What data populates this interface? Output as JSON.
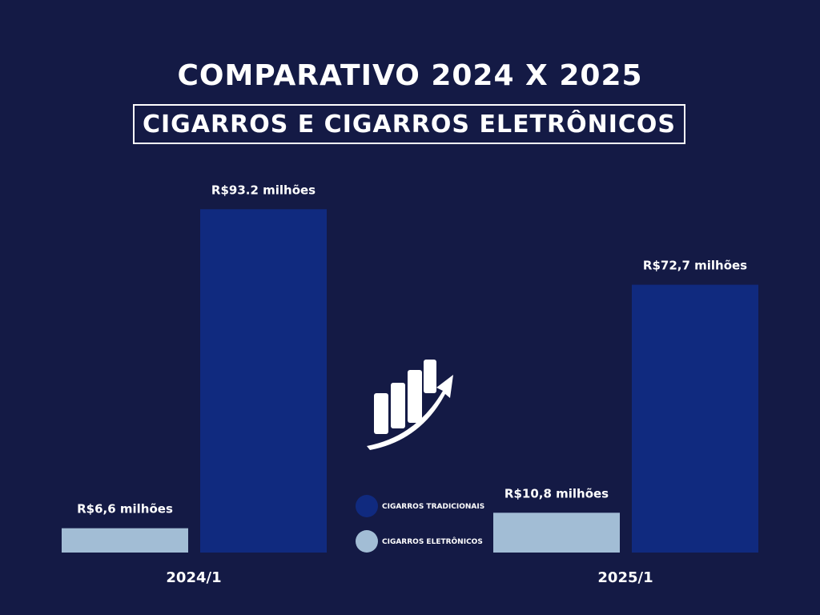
{
  "title": "COMPARATIVO 2024 X 2025",
  "subtitle": "CIGARROS E CIGARROS ELETRÔNICOS",
  "icon": "growth-chart-arrow-icon",
  "colors": {
    "background": "#141a45",
    "tradicionais": "#102a7f",
    "eletronicos": "#a2bdd5"
  },
  "chart_data": {
    "type": "bar",
    "title": "COMPARATIVO 2024 X 2025",
    "subtitle": "CIGARROS E CIGARROS ELETRÔNICOS",
    "categories": [
      "2024/1",
      "2025/1"
    ],
    "series": [
      {
        "name": "CIGARROS ELETRÔNICOS",
        "color": "#a2bdd5",
        "values": [
          6.6,
          10.8
        ],
        "labels": [
          "R$6,6 milhões",
          "R$10,8 milhões"
        ]
      },
      {
        "name": "CIGARROS TRADICIONAIS",
        "color": "#102a7f",
        "values": [
          93.2,
          72.7
        ],
        "labels": [
          "R$93.2 milhões",
          "R$72,7 milhões"
        ]
      }
    ],
    "legend": {
      "position": "center",
      "entries": [
        "CIGARROS TRADICIONAIS",
        "CIGARROS ELETRÔNICOS"
      ]
    },
    "grid": false,
    "xlabel": "",
    "ylabel": ""
  }
}
